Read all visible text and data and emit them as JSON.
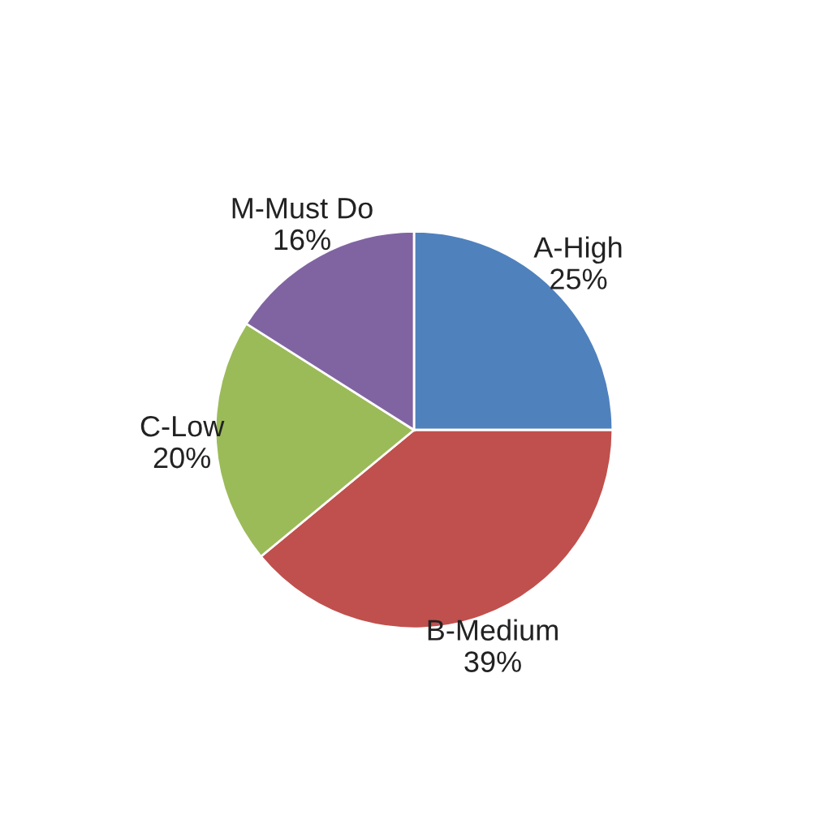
{
  "chart_data": {
    "type": "pie",
    "categories": [
      "A-High",
      "B-Medium",
      "C-Low",
      "M-Must Do"
    ],
    "values": [
      25,
      39,
      20,
      16
    ],
    "value_labels": [
      "25%",
      "39%",
      "20%",
      "16%"
    ],
    "colors": [
      "#4f81bd",
      "#c0504d",
      "#9bbb59",
      "#8064a2"
    ],
    "legend": false
  }
}
